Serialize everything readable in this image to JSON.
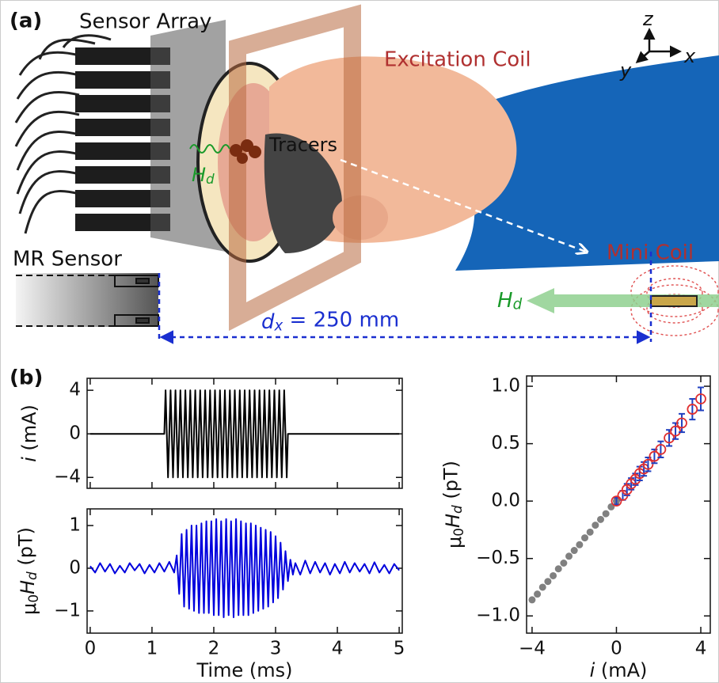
{
  "figure_a": {
    "panel_label": "(a)",
    "sensor_array": "Sensor Array",
    "excitation_coil": "Excitation Coil",
    "tracers": "Tracers",
    "tracer_field": [
      {
        "text": "H",
        "italic": true
      },
      {
        "text": "d",
        "sub": true,
        "italic": true
      }
    ],
    "mr_sensor": "MR Sensor",
    "mini_coil": "Mini Coil",
    "dipole_field": [
      {
        "text": "H",
        "italic": true
      },
      {
        "text": "d",
        "sub": true,
        "italic": true
      }
    ],
    "distance": [
      {
        "text": "d",
        "italic": true
      },
      {
        "text": "x",
        "sub": true,
        "italic": true
      },
      {
        "text": " = 250 mm"
      }
    ],
    "axes": {
      "z": "z",
      "y": "y",
      "x": "x"
    }
  },
  "panel_b_label": "(b)",
  "chart_data": [
    {
      "type": "line",
      "color": "#000000",
      "ylabel": [
        {
          "text": "i",
          "italic": true
        },
        {
          "text": " (mA)"
        }
      ],
      "show_xtick_labels": false,
      "xlim": [
        -0.05,
        5.05
      ],
      "xticks": [
        0,
        1,
        2,
        3,
        4,
        5
      ],
      "ylim": [
        -5,
        5.1
      ],
      "yticks": [
        {
          "value": -4,
          "label": "−4"
        },
        0,
        4
      ],
      "x": [
        0,
        1.2,
        1.22,
        1.26,
        1.3,
        1.34,
        1.38,
        1.42,
        1.46,
        1.5,
        1.54,
        1.58,
        1.62,
        1.66,
        1.7,
        1.74,
        1.78,
        1.82,
        1.86,
        1.9,
        1.94,
        1.98,
        2.02,
        2.06,
        2.1,
        2.14,
        2.18,
        2.22,
        2.26,
        2.3,
        2.34,
        2.38,
        2.42,
        2.46,
        2.5,
        2.54,
        2.58,
        2.62,
        2.66,
        2.7,
        2.74,
        2.78,
        2.82,
        2.86,
        2.9,
        2.94,
        2.98,
        3.02,
        3.06,
        3.1,
        3.14,
        3.18,
        3.2,
        5
      ],
      "values": [
        0,
        0,
        4,
        -4,
        4,
        -4,
        4,
        -4,
        4,
        -4,
        4,
        -4,
        4,
        -4,
        4,
        -4,
        4,
        -4,
        4,
        -4,
        4,
        -4,
        4,
        -4,
        4,
        -4,
        4,
        -4,
        4,
        -4,
        4,
        -4,
        4,
        -4,
        4,
        -4,
        4,
        -4,
        4,
        -4,
        4,
        -4,
        4,
        -4,
        4,
        -4,
        4,
        -4,
        4,
        -4,
        4,
        -4,
        0,
        0
      ]
    },
    {
      "type": "line",
      "color": "#0000dd",
      "ylabel": [
        {
          "text": "μ"
        },
        {
          "text": "0",
          "sub": true
        },
        {
          "text": "H",
          "italic": true
        },
        {
          "text": "d",
          "sub": true,
          "italic": true
        },
        {
          "text": " (pT)"
        }
      ],
      "xlabel": "Time (ms)",
      "xlim": [
        -0.05,
        5.05
      ],
      "xticks": [
        0,
        1,
        2,
        3,
        4,
        5
      ],
      "ylim": [
        -1.52,
        1.39
      ],
      "yticks": [
        {
          "value": -1,
          "label": "−1"
        },
        0,
        1
      ],
      "x": [
        0,
        0.08,
        0.16,
        0.24,
        0.32,
        0.4,
        0.48,
        0.56,
        0.64,
        0.72,
        0.8,
        0.88,
        0.96,
        1.04,
        1.12,
        1.2,
        1.28,
        1.36,
        1.4,
        1.44,
        1.48,
        1.52,
        1.56,
        1.6,
        1.64,
        1.68,
        1.72,
        1.76,
        1.8,
        1.84,
        1.88,
        1.92,
        1.96,
        2,
        2.04,
        2.08,
        2.12,
        2.16,
        2.2,
        2.24,
        2.28,
        2.32,
        2.36,
        2.4,
        2.44,
        2.48,
        2.52,
        2.56,
        2.6,
        2.64,
        2.68,
        2.72,
        2.76,
        2.8,
        2.84,
        2.88,
        2.92,
        2.96,
        3,
        3.04,
        3.08,
        3.12,
        3.16,
        3.2,
        3.24,
        3.28,
        3.32,
        3.4,
        3.48,
        3.56,
        3.64,
        3.72,
        3.8,
        3.88,
        3.96,
        4.04,
        4.12,
        4.2,
        4.28,
        4.36,
        4.44,
        4.52,
        4.6,
        4.68,
        4.76,
        4.84,
        4.92,
        5
      ],
      "values": [
        0.05,
        -0.1,
        0.12,
        -0.08,
        0.1,
        -0.12,
        0.06,
        -0.1,
        0.12,
        -0.05,
        0.1,
        -0.12,
        0.08,
        -0.1,
        0.12,
        -0.08,
        0.15,
        -0.1,
        0.3,
        -0.6,
        0.8,
        -0.9,
        0.9,
        -0.95,
        1.0,
        -1.0,
        1.0,
        -1.05,
        1.05,
        -1.05,
        1.1,
        -1.05,
        1.1,
        -1.1,
        1.15,
        -1.1,
        1.1,
        -1.15,
        1.15,
        -1.1,
        1.1,
        -1.15,
        1.15,
        -1.1,
        1.1,
        -1.1,
        1.05,
        -1.1,
        1.05,
        -1.05,
        1.0,
        -1.0,
        0.95,
        -0.95,
        0.9,
        -0.9,
        0.85,
        -0.8,
        0.75,
        -0.7,
        0.6,
        -0.5,
        0.4,
        -0.3,
        0.2,
        -0.15,
        0.12,
        -0.15,
        0.18,
        -0.12,
        0.15,
        -0.1,
        0.12,
        -0.15,
        0.1,
        -0.12,
        0.15,
        -0.1,
        0.12,
        -0.08,
        0.1,
        -0.12,
        0.14,
        -0.1,
        0.08,
        -0.12,
        0.1,
        -0.05
      ]
    },
    {
      "type": "scatter",
      "ylabel": [
        {
          "text": "μ"
        },
        {
          "text": "0",
          "sub": true
        },
        {
          "text": "H",
          "italic": true
        },
        {
          "text": "d",
          "sub": true,
          "italic": true
        },
        {
          "text": " (pT)"
        }
      ],
      "xlabel": [
        {
          "text": "i",
          "italic": true
        },
        {
          "text": " (mA)"
        }
      ],
      "xlim": [
        -4.26,
        4.45
      ],
      "xticks": [
        {
          "value": -4,
          "label": "−4"
        },
        0,
        4
      ],
      "ylim": [
        -1.15,
        1.09
      ],
      "yticks": [
        {
          "value": -1,
          "label": "−1.0"
        },
        {
          "value": -0.5,
          "label": "−0.5"
        },
        {
          "value": 0,
          "label": "0.0"
        },
        0.5,
        {
          "value": 1,
          "label": "1.0"
        }
      ],
      "series": [
        {
          "color": "#808080",
          "x": [
            -4,
            -3.75,
            -3.5,
            -3.25,
            -3,
            -2.75,
            -2.5,
            -2.25,
            -2,
            -1.75,
            -1.5,
            -1.25,
            -1,
            -0.75,
            -0.5,
            -0.25,
            0
          ],
          "values": [
            -0.86,
            -0.81,
            -0.75,
            -0.7,
            -0.65,
            -0.59,
            -0.54,
            -0.48,
            -0.43,
            -0.38,
            -0.32,
            -0.27,
            -0.21,
            -0.16,
            -0.11,
            -0.05,
            0
          ]
        },
        {
          "color": "#e03030",
          "error_color": "#2040c0",
          "hollow": true,
          "x": [
            0,
            0.3,
            0.5,
            0.7,
            0.9,
            1.1,
            1.3,
            1.5,
            1.8,
            2.1,
            2.5,
            2.8,
            3.1,
            3.6,
            4.0
          ],
          "values": [
            0,
            0.05,
            0.1,
            0.15,
            0.19,
            0.24,
            0.28,
            0.32,
            0.39,
            0.45,
            0.55,
            0.61,
            0.68,
            0.8,
            0.89
          ],
          "errors": [
            0.03,
            0.04,
            0.05,
            0.05,
            0.05,
            0.06,
            0.06,
            0.06,
            0.06,
            0.07,
            0.07,
            0.07,
            0.08,
            0.09,
            0.1
          ]
        }
      ]
    }
  ]
}
